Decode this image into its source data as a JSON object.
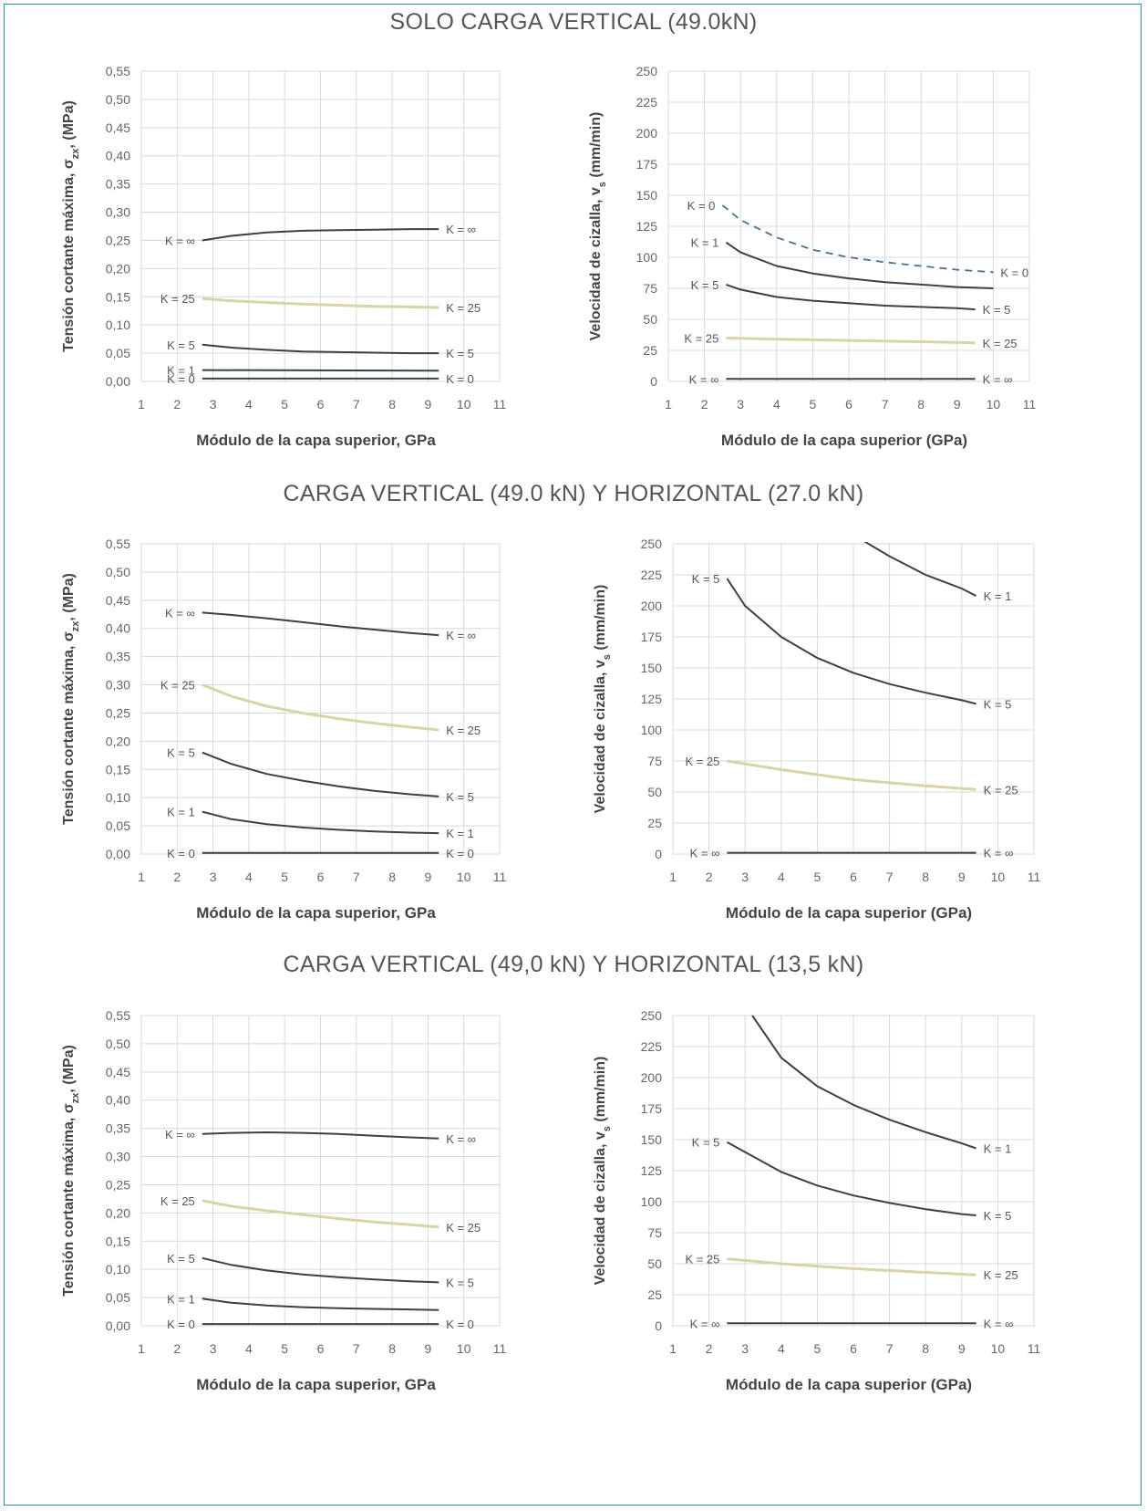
{
  "section_titles": [
    "SOLO CARGA VERTICAL (49.0kN)",
    "CARGA VERTICAL (49.0 kN) Y HORIZONTAL (27.0 kN)",
    "CARGA VERTICAL (49,0 kN) Y HORIZONTAL (13,5 kN)"
  ],
  "colors": {
    "dark": "#3b3f4a",
    "light": "#d9d4a8",
    "grid": "#d8d8d8",
    "frame": "#2a8fa3"
  },
  "chart_data": [
    {
      "type": "line",
      "xlabel": "Módulo de la capa superior, GPa",
      "ylabel_main": "Tensión cortante máxima, σ",
      "ylabel_sub": "zx",
      "ylabel_unit": ", (MPa)",
      "xlim": [
        1,
        11
      ],
      "ylim": [
        0,
        0.55
      ],
      "xticks": [
        "1",
        "2",
        "3",
        "4",
        "5",
        "6",
        "7",
        "8",
        "9",
        "10",
        "11"
      ],
      "yticks": [
        "0,00",
        "0,05",
        "0,10",
        "0,15",
        "0,20",
        "0,25",
        "0,30",
        "0,35",
        "0,40",
        "0,45",
        "0,50",
        "0,55"
      ],
      "series": [
        {
          "name": "K = ∞",
          "start_label": "K = ∞",
          "end_label": "K = ∞",
          "x": [
            2.7,
            3.5,
            4.5,
            5.5,
            6.5,
            7.5,
            8.5,
            9.3
          ],
          "y": [
            0.25,
            0.258,
            0.264,
            0.267,
            0.268,
            0.269,
            0.27,
            0.27
          ],
          "style": "dark"
        },
        {
          "name": "K = 25",
          "start_label": "K = 25",
          "end_label": "K = 25",
          "x": [
            2.7,
            3.5,
            4.5,
            5.5,
            6.5,
            7.5,
            8.5,
            9.3
          ],
          "y": [
            0.147,
            0.143,
            0.14,
            0.137,
            0.135,
            0.133,
            0.132,
            0.131
          ],
          "style": "light"
        },
        {
          "name": "K = 5",
          "start_label": "K = 5",
          "end_label": "K = 5",
          "x": [
            2.7,
            3.5,
            4.5,
            5.5,
            6.5,
            7.5,
            8.5,
            9.3
          ],
          "y": [
            0.065,
            0.06,
            0.056,
            0.053,
            0.052,
            0.051,
            0.05,
            0.05
          ],
          "style": "dark"
        },
        {
          "name": "K = 1",
          "start_label": "K = 1",
          "end_label": "",
          "x": [
            2.7,
            9.3
          ],
          "y": [
            0.02,
            0.019
          ],
          "style": "dark"
        },
        {
          "name": "K = 0",
          "start_label": "K = 0",
          "end_label": "K = 0",
          "x": [
            2.7,
            9.3
          ],
          "y": [
            0.005,
            0.005
          ],
          "style": "dark"
        }
      ]
    },
    {
      "type": "line",
      "xlabel": "Módulo de la capa superior (GPa)",
      "ylabel_main": "Velocidad de cizalla, v",
      "ylabel_sub": "s",
      "ylabel_unit": " (mm/min)",
      "xlim": [
        1,
        11
      ],
      "ylim": [
        0,
        250
      ],
      "xticks": [
        "1",
        "2",
        "3",
        "4",
        "5",
        "6",
        "7",
        "8",
        "9",
        "10",
        "11"
      ],
      "yticks": [
        "0",
        "25",
        "50",
        "75",
        "100",
        "125",
        "150",
        "175",
        "200",
        "225",
        "250"
      ],
      "series": [
        {
          "name": "K = 0",
          "start_label": "K = 0",
          "end_label": "K = 0",
          "x": [
            2.5,
            3,
            4,
            5,
            6,
            7,
            8,
            9,
            10
          ],
          "y": [
            142,
            130,
            116,
            106,
            100,
            96,
            93,
            90,
            88
          ],
          "style": "dashed"
        },
        {
          "name": "K = 1",
          "start_label": "K = 1",
          "end_label": "",
          "x": [
            2.6,
            3,
            4,
            5,
            6,
            7,
            8,
            9,
            10
          ],
          "y": [
            112,
            104,
            93,
            87,
            83,
            80,
            78,
            76,
            75
          ],
          "style": "dark"
        },
        {
          "name": "K = 5",
          "start_label": "K = 5",
          "end_label": "K = 5",
          "x": [
            2.6,
            3,
            4,
            5,
            6,
            7,
            8,
            9,
            9.5
          ],
          "y": [
            78,
            74,
            68,
            65,
            63,
            61,
            60,
            59,
            58
          ],
          "style": "dark"
        },
        {
          "name": "K = 25",
          "start_label": "K = 25",
          "end_label": "K = 25",
          "x": [
            2.6,
            4,
            6,
            8,
            9.5
          ],
          "y": [
            35,
            34,
            33,
            32,
            31
          ],
          "style": "light"
        },
        {
          "name": "K = ∞",
          "start_label": "K = ∞",
          "end_label": "K = ∞",
          "x": [
            2.6,
            9.5
          ],
          "y": [
            2,
            2
          ],
          "style": "dark"
        }
      ]
    },
    {
      "type": "line",
      "xlabel": "Módulo de la capa superior, GPa",
      "ylabel_main": "Tensión cortante máxima, σ",
      "ylabel_sub": "zx",
      "ylabel_unit": ", (MPa)",
      "xlim": [
        1,
        11
      ],
      "ylim": [
        0,
        0.55
      ],
      "xticks": [
        "1",
        "2",
        "3",
        "4",
        "5",
        "6",
        "7",
        "8",
        "9",
        "10",
        "11"
      ],
      "yticks": [
        "0,00",
        "0,05",
        "0,10",
        "0,15",
        "0,20",
        "0,25",
        "0,30",
        "0,35",
        "0,40",
        "0,45",
        "0,50",
        "0,55"
      ],
      "series": [
        {
          "name": "K = ∞",
          "start_label": "K = ∞",
          "end_label": "K = ∞",
          "x": [
            2.7,
            3.5,
            4.5,
            5.5,
            6.5,
            7.5,
            8.5,
            9.3
          ],
          "y": [
            0.428,
            0.424,
            0.418,
            0.411,
            0.404,
            0.398,
            0.392,
            0.388
          ],
          "style": "dark"
        },
        {
          "name": "K = 25",
          "start_label": "K = 25",
          "end_label": "K = 25",
          "x": [
            2.7,
            3.5,
            4.5,
            5.5,
            6.5,
            7.5,
            8.5,
            9.3
          ],
          "y": [
            0.3,
            0.28,
            0.262,
            0.25,
            0.24,
            0.232,
            0.225,
            0.22
          ],
          "style": "light"
        },
        {
          "name": "K = 5",
          "start_label": "K = 5",
          "end_label": "K = 5",
          "x": [
            2.7,
            3.5,
            4.5,
            5.5,
            6.5,
            7.5,
            8.5,
            9.3
          ],
          "y": [
            0.18,
            0.16,
            0.142,
            0.13,
            0.12,
            0.112,
            0.106,
            0.102
          ],
          "style": "dark"
        },
        {
          "name": "K = 1",
          "start_label": "K = 1",
          "end_label": "K = 1",
          "x": [
            2.7,
            3.5,
            4.5,
            5.5,
            6.5,
            7.5,
            8.5,
            9.3
          ],
          "y": [
            0.075,
            0.062,
            0.053,
            0.047,
            0.043,
            0.04,
            0.038,
            0.037
          ],
          "style": "dark"
        },
        {
          "name": "K = 0",
          "start_label": "K = 0",
          "end_label": "K = 0",
          "x": [
            2.7,
            9.3
          ],
          "y": [
            0.002,
            0.002
          ],
          "style": "dark"
        }
      ]
    },
    {
      "type": "line",
      "xlabel": "Módulo de la capa superior (GPa)",
      "ylabel_main": "Velocidad de cizalla, v",
      "ylabel_sub": "s",
      "ylabel_unit": " (mm/min)",
      "xlim": [
        1,
        11
      ],
      "ylim": [
        0,
        250
      ],
      "xticks": [
        "1",
        "2",
        "3",
        "4",
        "5",
        "6",
        "7",
        "8",
        "9",
        "10",
        "11"
      ],
      "yticks": [
        "0",
        "25",
        "50",
        "75",
        "100",
        "125",
        "150",
        "175",
        "200",
        "225",
        "250"
      ],
      "series": [
        {
          "name": "K = 1",
          "start_label": "",
          "end_label": "K = 1",
          "x": [
            6.3,
            7,
            8,
            9,
            9.4
          ],
          "y": [
            252,
            240,
            225,
            214,
            208
          ],
          "style": "dark"
        },
        {
          "name": "K = 5",
          "start_label": "K = 5",
          "end_label": "K = 5",
          "x": [
            2.5,
            3,
            4,
            5,
            6,
            7,
            8,
            9,
            9.4
          ],
          "y": [
            222,
            200,
            175,
            158,
            146,
            137,
            130,
            124,
            121
          ],
          "style": "dark"
        },
        {
          "name": "K = 25",
          "start_label": "K = 25",
          "end_label": "K = 25",
          "x": [
            2.5,
            4,
            6,
            8,
            9.4
          ],
          "y": [
            75,
            68,
            60,
            55,
            52
          ],
          "style": "light"
        },
        {
          "name": "K = ∞",
          "start_label": "K = ∞",
          "end_label": "K = ∞",
          "x": [
            2.5,
            9.4
          ],
          "y": [
            1,
            1
          ],
          "style": "dark"
        }
      ]
    },
    {
      "type": "line",
      "xlabel": "Módulo de la capa superior, GPa",
      "ylabel_main": "Tensión cortante máxima, σ",
      "ylabel_sub": "zx",
      "ylabel_unit": ", (MPa)",
      "xlim": [
        1,
        11
      ],
      "ylim": [
        0,
        0.55
      ],
      "xticks": [
        "1",
        "2",
        "3",
        "4",
        "5",
        "6",
        "7",
        "8",
        "9",
        "10",
        "11"
      ],
      "yticks": [
        "0,00",
        "0,05",
        "0,10",
        "0,15",
        "0,20",
        "0,25",
        "0,30",
        "0,35",
        "0,40",
        "0,45",
        "0,50",
        "0,55"
      ],
      "series": [
        {
          "name": "K = ∞",
          "start_label": "K = ∞",
          "end_label": "K = ∞",
          "x": [
            2.7,
            3.5,
            4.5,
            5.5,
            6.5,
            7.5,
            8.5,
            9.3
          ],
          "y": [
            0.34,
            0.342,
            0.343,
            0.342,
            0.34,
            0.337,
            0.334,
            0.332
          ],
          "style": "dark"
        },
        {
          "name": "K = 25",
          "start_label": "K = 25",
          "end_label": "K = 25",
          "x": [
            2.7,
            3.5,
            4.5,
            5.5,
            6.5,
            7.5,
            8.5,
            9.3
          ],
          "y": [
            0.222,
            0.212,
            0.204,
            0.197,
            0.19,
            0.184,
            0.179,
            0.175
          ],
          "style": "light"
        },
        {
          "name": "K = 5",
          "start_label": "K = 5",
          "end_label": "K = 5",
          "x": [
            2.7,
            3.5,
            4.5,
            5.5,
            6.5,
            7.5,
            8.5,
            9.3
          ],
          "y": [
            0.12,
            0.108,
            0.098,
            0.091,
            0.086,
            0.082,
            0.079,
            0.077
          ],
          "style": "dark"
        },
        {
          "name": "K = 1",
          "start_label": "K = 1",
          "end_label": "",
          "x": [
            2.7,
            3.5,
            4.5,
            5.5,
            6.5,
            7.5,
            8.5,
            9.3
          ],
          "y": [
            0.048,
            0.041,
            0.036,
            0.033,
            0.031,
            0.03,
            0.029,
            0.028
          ],
          "style": "dark"
        },
        {
          "name": "K = 0",
          "start_label": "K = 0",
          "end_label": "K = 0",
          "x": [
            2.7,
            9.3
          ],
          "y": [
            0.003,
            0.003
          ],
          "style": "dark"
        }
      ]
    },
    {
      "type": "line",
      "xlabel": "Módulo de la capa superior (GPa)",
      "ylabel_main": "Velocidad de cizalla, v",
      "ylabel_sub": "s",
      "ylabel_unit": " (mm/min)",
      "xlim": [
        1,
        11
      ],
      "ylim": [
        0,
        250
      ],
      "xticks": [
        "1",
        "2",
        "3",
        "4",
        "5",
        "6",
        "7",
        "8",
        "9",
        "10",
        "11"
      ],
      "yticks": [
        "0",
        "25",
        "50",
        "75",
        "100",
        "125",
        "150",
        "175",
        "200",
        "225",
        "250"
      ],
      "series": [
        {
          "name": "K = 1",
          "start_label": "",
          "end_label": "K = 1",
          "x": [
            3.2,
            4,
            5,
            6,
            7,
            8,
            9,
            9.4
          ],
          "y": [
            250,
            216,
            193,
            178,
            166,
            156,
            147,
            143
          ],
          "style": "dark"
        },
        {
          "name": "K = 5",
          "start_label": "K = 5",
          "end_label": "K = 5",
          "x": [
            2.5,
            3,
            4,
            5,
            6,
            7,
            8,
            9,
            9.4
          ],
          "y": [
            148,
            140,
            124,
            113,
            105,
            99,
            94,
            90,
            89
          ],
          "style": "dark"
        },
        {
          "name": "K = 25",
          "start_label": "K = 25",
          "end_label": "K = 25",
          "x": [
            2.5,
            4,
            6,
            8,
            9.4
          ],
          "y": [
            54,
            50,
            46,
            43,
            41
          ],
          "style": "light"
        },
        {
          "name": "K = ∞",
          "start_label": "K = ∞",
          "end_label": "K = ∞",
          "x": [
            2.5,
            9.4
          ],
          "y": [
            2,
            2
          ],
          "style": "dark"
        }
      ]
    }
  ]
}
